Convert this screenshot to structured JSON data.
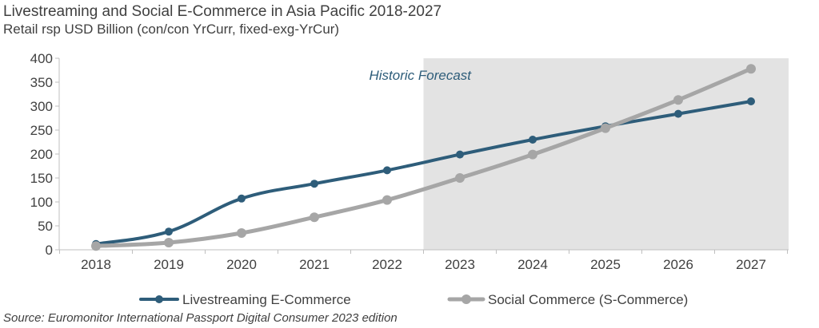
{
  "chart_data": {
    "type": "line",
    "title": "Livestreaming and Social E-Commerce in Asia Pacific 2018-2027",
    "subtitle": "Retail rsp USD Billion (con/con YrCurr, fixed-exg-YrCur)",
    "source": "Source: Euromonitor International Passport Digital Consumer 2023 edition",
    "band_label": "Historic Forecast",
    "x": [
      "2018",
      "2019",
      "2020",
      "2021",
      "2022",
      "2023",
      "2024",
      "2025",
      "2026",
      "2027"
    ],
    "ylim": [
      0,
      400
    ],
    "yticks": [
      0,
      50,
      100,
      150,
      200,
      250,
      300,
      350,
      400
    ],
    "forecast_start": 2022.5,
    "legend": "bottom",
    "grid": false,
    "series": [
      {
        "name": "Livestreaming E-Commerce",
        "color": "#2e5d7a",
        "values": [
          12,
          38,
          107,
          138,
          166,
          199,
          230,
          258,
          284,
          310
        ]
      },
      {
        "name": "Social Commerce (S-Commerce)",
        "color": "#a6a6a6",
        "values": [
          8,
          15,
          35,
          68,
          104,
          150,
          199,
          254,
          313,
          378
        ]
      }
    ]
  }
}
